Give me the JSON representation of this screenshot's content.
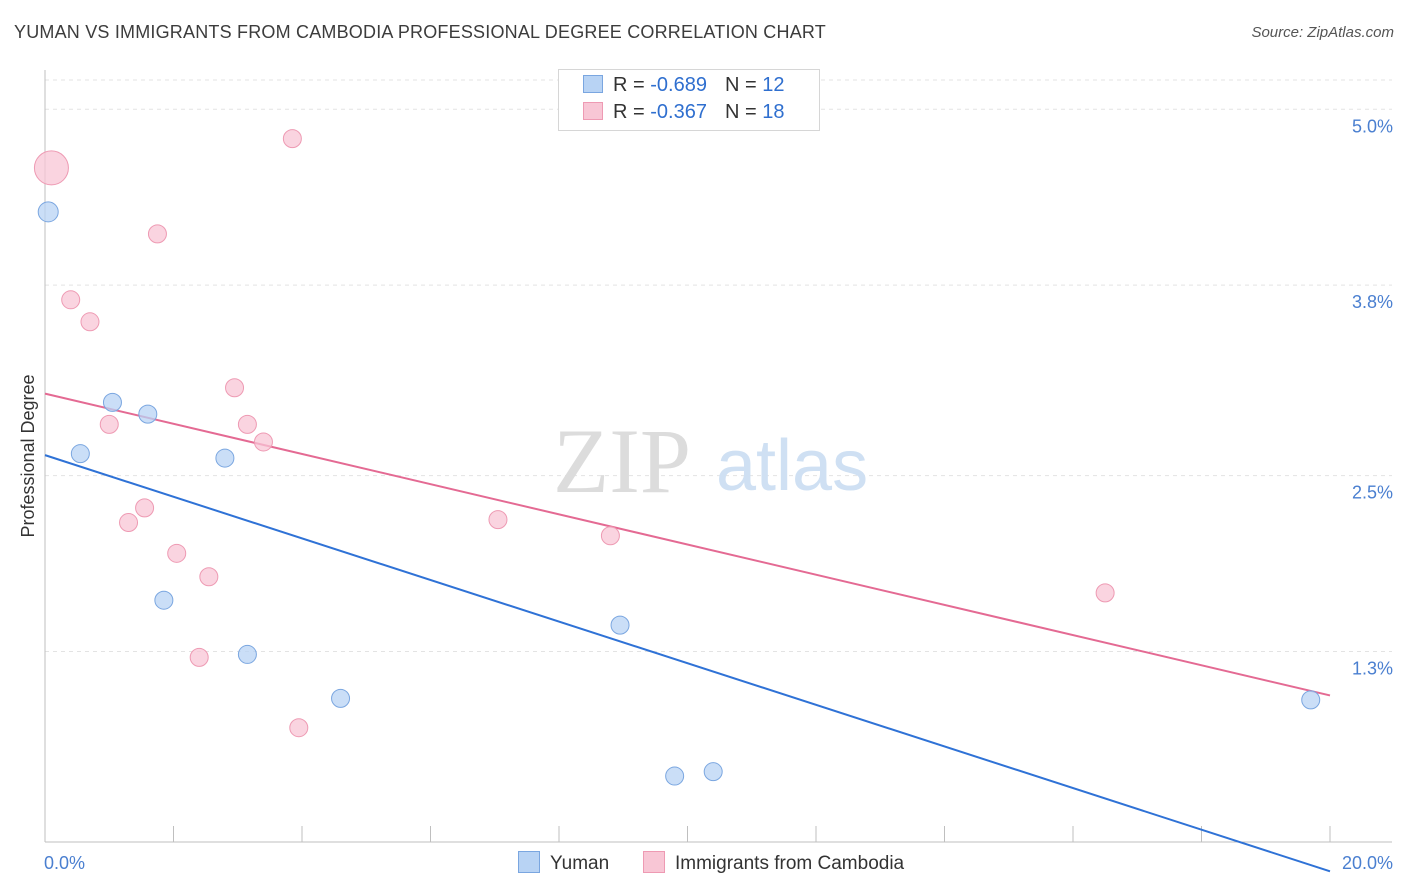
{
  "title": "YUMAN VS IMMIGRANTS FROM CAMBODIA PROFESSIONAL DEGREE CORRELATION CHART",
  "source": "Source: ZipAtlas.com",
  "watermark": {
    "zip": "ZIP",
    "atlas": "atlas"
  },
  "colors": {
    "yuman_fill": "#b8d3f4",
    "yuman_stroke": "#7aa6e0",
    "yuman_line": "#2f72d6",
    "cambodia_fill": "#f8c6d5",
    "cambodia_stroke": "#ee9ab3",
    "cambodia_line": "#e46a93",
    "tick_label": "#4a7fd0"
  },
  "legend": {
    "rows": [
      {
        "r_label": "R = ",
        "r_value": "-0.689",
        "n_label": "N = ",
        "n_value": "12"
      },
      {
        "r_label": "R = ",
        "r_value": "-0.367",
        "n_label": "N = ",
        "n_value": "18"
      }
    ]
  },
  "chart_data": {
    "type": "scatter",
    "title": "YUMAN VS IMMIGRANTS FROM CAMBODIA PROFESSIONAL DEGREE CORRELATION CHART",
    "xlabel": "",
    "ylabel": "Professional Degree",
    "xlim": [
      0,
      20
    ],
    "ylim": [
      0.0,
      5.2
    ],
    "x_tick_labels": [
      "0.0%",
      "20.0%"
    ],
    "y_ticks": [
      1.3,
      2.5,
      3.8,
      5.0
    ],
    "y_tick_labels": [
      "1.3%",
      "2.5%",
      "3.8%",
      "5.0%"
    ],
    "grid": true,
    "legend_position": "bottom",
    "series": [
      {
        "name": "Yuman",
        "points": [
          {
            "x": 0.05,
            "y": 4.3,
            "size": 10
          },
          {
            "x": 0.55,
            "y": 2.65,
            "size": 9
          },
          {
            "x": 1.05,
            "y": 3.0,
            "size": 9
          },
          {
            "x": 1.6,
            "y": 2.92,
            "size": 9
          },
          {
            "x": 1.85,
            "y": 1.65,
            "size": 9
          },
          {
            "x": 2.8,
            "y": 2.62,
            "size": 9
          },
          {
            "x": 3.15,
            "y": 1.28,
            "size": 9
          },
          {
            "x": 4.6,
            "y": 0.98,
            "size": 9
          },
          {
            "x": 8.95,
            "y": 1.48,
            "size": 9
          },
          {
            "x": 9.8,
            "y": 0.45,
            "size": 9
          },
          {
            "x": 10.4,
            "y": 0.48,
            "size": 9
          },
          {
            "x": 19.7,
            "y": 0.97,
            "size": 9
          }
        ],
        "trend": {
          "x0": 0,
          "y0": 2.64,
          "x1": 20,
          "y1": -0.2
        }
      },
      {
        "name": "Immigrants from Cambodia",
        "points": [
          {
            "x": 0.1,
            "y": 4.6,
            "size": 17
          },
          {
            "x": 0.4,
            "y": 3.7,
            "size": 9
          },
          {
            "x": 0.7,
            "y": 3.55,
            "size": 9
          },
          {
            "x": 1.0,
            "y": 2.85,
            "size": 9
          },
          {
            "x": 1.3,
            "y": 2.18,
            "size": 9
          },
          {
            "x": 1.55,
            "y": 2.28,
            "size": 9
          },
          {
            "x": 1.75,
            "y": 4.15,
            "size": 9
          },
          {
            "x": 2.05,
            "y": 1.97,
            "size": 9
          },
          {
            "x": 2.4,
            "y": 1.26,
            "size": 9
          },
          {
            "x": 2.55,
            "y": 1.81,
            "size": 9
          },
          {
            "x": 2.95,
            "y": 3.1,
            "size": 9
          },
          {
            "x": 3.15,
            "y": 2.85,
            "size": 9
          },
          {
            "x": 3.4,
            "y": 2.73,
            "size": 9
          },
          {
            "x": 3.85,
            "y": 4.8,
            "size": 9
          },
          {
            "x": 3.95,
            "y": 0.78,
            "size": 9
          },
          {
            "x": 7.05,
            "y": 2.2,
            "size": 9
          },
          {
            "x": 8.8,
            "y": 2.09,
            "size": 9
          },
          {
            "x": 16.5,
            "y": 1.7,
            "size": 9
          }
        ],
        "trend": {
          "x0": 0,
          "y0": 3.06,
          "x1": 20,
          "y1": 1.0
        }
      }
    ]
  }
}
